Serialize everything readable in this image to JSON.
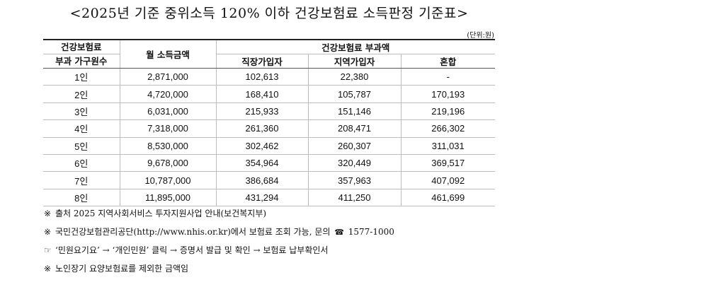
{
  "title": "<2025년 기준 중위소득 120% 이하 건강보험료 소득판정 기준표>",
  "unit": "(단위:원)",
  "table": {
    "header": {
      "household_line1": "건강보험료",
      "household_line2": "부과 가구원수",
      "income": "월 소득금액",
      "premium_group": "건강보험료 부과액",
      "employee": "직장가입자",
      "regional": "지역가입자",
      "mixed": "혼합"
    },
    "rows": [
      {
        "household": "1인",
        "income": "2,871,000",
        "employee": "102,613",
        "regional": "22,380",
        "mixed": "-"
      },
      {
        "household": "2인",
        "income": "4,720,000",
        "employee": "168,410",
        "regional": "105,787",
        "mixed": "170,193"
      },
      {
        "household": "3인",
        "income": "6,031,000",
        "employee": "215,933",
        "regional": "151,146",
        "mixed": "219,196"
      },
      {
        "household": "4인",
        "income": "7,318,000",
        "employee": "261,360",
        "regional": "208,471",
        "mixed": "266,302"
      },
      {
        "household": "5인",
        "income": "8,530,000",
        "employee": "302,462",
        "regional": "260,307",
        "mixed": "311,031"
      },
      {
        "household": "6인",
        "income": "9,678,000",
        "employee": "354,964",
        "regional": "320,449",
        "mixed": "369,517"
      },
      {
        "household": "7인",
        "income": "10,787,000",
        "employee": "386,684",
        "regional": "357,963",
        "mixed": "407,092"
      },
      {
        "household": "8인",
        "income": "11,895,000",
        "employee": "431,294",
        "regional": "411,250",
        "mixed": "461,699"
      }
    ]
  },
  "notes": [
    {
      "mark": "※",
      "text": "출처 2025 지역사회서비스 투자지원사업 안내(보건복지부)"
    },
    {
      "mark": "※",
      "text": "국민건강보험관리공단(http://www.nhis.or.kr)에서 보험료 조회 가능, 문의",
      "icon": "phone-icon",
      "icon_glyph": "☎",
      "phone": "1577-1000"
    },
    {
      "mark": "☞",
      "text": "‘민원요기요’ → ‘개인민원’ 클릭 → 증명서 발급 및 확인 → 보험료 납부확인서"
    },
    {
      "mark": "※",
      "text": "노인장기 요양보험료를 제외한 금액임"
    }
  ]
}
